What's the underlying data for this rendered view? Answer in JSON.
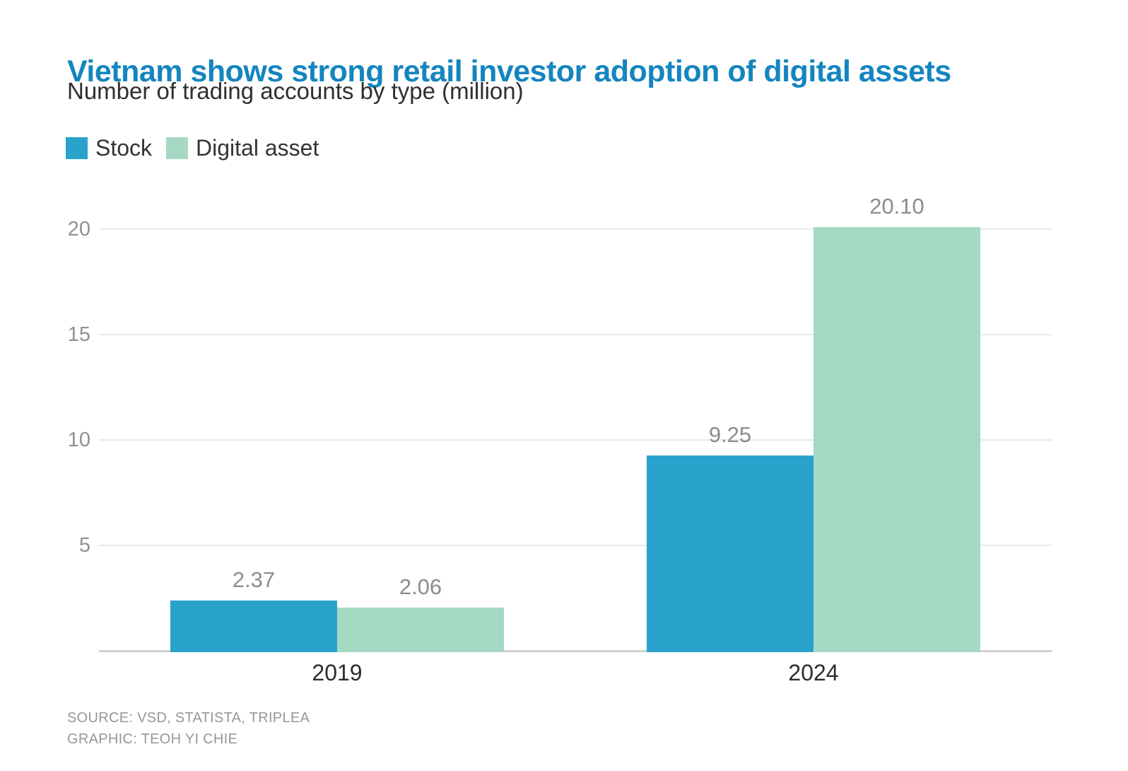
{
  "header": {
    "title": "Vietnam shows strong retail investor adoption of digital assets",
    "subtitle": "Number of trading accounts by type (million)"
  },
  "chart_data": {
    "type": "bar",
    "title": "Vietnam shows strong retail investor adoption of digital assets",
    "subtitle": "Number of trading accounts by type (million)",
    "categories": [
      "2019",
      "2024"
    ],
    "series": [
      {
        "name": "Stock",
        "color": "#29A3CB",
        "values": [
          2.37,
          9.25
        ],
        "labels": [
          "2.37",
          "9.25"
        ]
      },
      {
        "name": "Digital asset",
        "color": "#A6D9C3",
        "values": [
          2.06,
          20.1
        ],
        "labels": [
          "2.06",
          "20.10"
        ]
      }
    ],
    "yticks": [
      5,
      10,
      15,
      20
    ],
    "ylim": [
      0,
      20.5
    ],
    "grid": "horizontal",
    "legend_position": "top-left"
  },
  "footer": {
    "source": "SOURCE: VSD, STATISTA, TRIPLEA",
    "graphic": "GRAPHIC: TEOH YI CHIE"
  },
  "colors": {
    "title": "#1485BF",
    "subtitle": "#2f2f2f",
    "legend_text": "#333333",
    "value_label": "#8c8c8c",
    "y_tick_label": "#919191",
    "x_tick_label": "#2d2d2d",
    "gridline": "#e9e9e9",
    "axis_line": "#d1d1d1",
    "source_text": "#979797"
  }
}
